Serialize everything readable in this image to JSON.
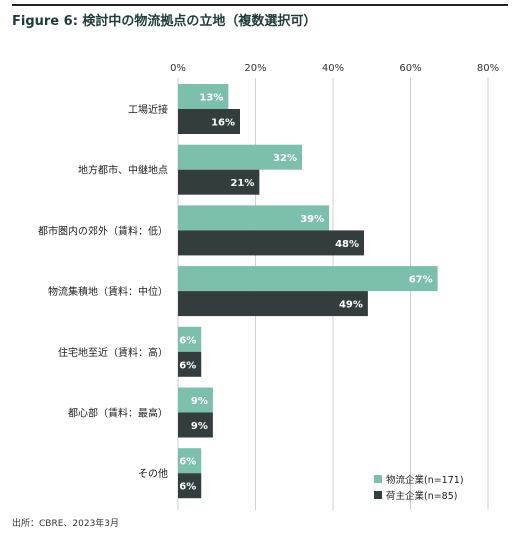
{
  "title": "Figure 6: 検討中の物流拠点の立地（複数選択可）",
  "source": "出所：CBRE、2023年3月",
  "colors": {
    "series1": "#7dbfad",
    "series2": "#333d3e",
    "grid": "#cfcfcf"
  },
  "chart_data": {
    "type": "bar",
    "orientation": "horizontal",
    "categories": [
      "工場近接",
      "地方都市、中継地点",
      "都市圏内の郊外（賃料：低）",
      "物流集積地（賃料：中位）",
      "住宅地至近（賃料：高）",
      "都心部（賃料：最高）",
      "その他"
    ],
    "series": [
      {
        "name": "物流企業(n=171)",
        "values": [
          13,
          32,
          39,
          67,
          6,
          9,
          6
        ],
        "labels": [
          "13%",
          "32%",
          "39%",
          "67%",
          "6%",
          "9%",
          "6%"
        ]
      },
      {
        "name": "荷主企業(n=85)",
        "values": [
          16,
          21,
          48,
          49,
          6,
          9,
          6
        ],
        "labels": [
          "16%",
          "21%",
          "48%",
          "49%",
          "6%",
          "9%",
          "6%"
        ]
      }
    ],
    "xlim": [
      0,
      80
    ],
    "ticks": [
      0,
      20,
      40,
      60,
      80
    ],
    "tick_labels": [
      "0%",
      "20%",
      "40%",
      "60%",
      "80%"
    ],
    "grid": true,
    "legend": "bottom-right"
  }
}
